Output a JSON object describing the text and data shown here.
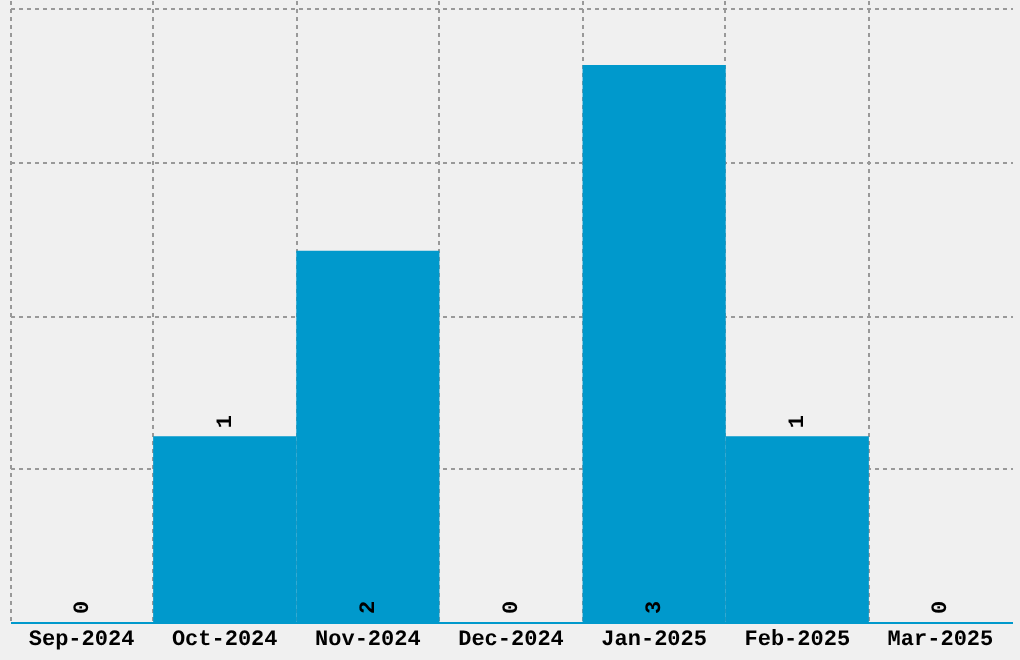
{
  "chart_data": {
    "type": "bar",
    "categories": [
      "Sep-2024",
      "Oct-2024",
      "Nov-2024",
      "Dec-2024",
      "Jan-2025",
      "Feb-2025",
      "Mar-2025"
    ],
    "values": [
      0,
      1,
      2,
      0,
      3,
      1,
      0
    ],
    "color": "#0099cc",
    "ylim": [
      0,
      3.35
    ],
    "yticks": [
      {
        "value": 0.83,
        "label": null
      },
      {
        "value": 1.65,
        "label": null
      },
      {
        "value": 2.48,
        "label": null
      },
      {
        "value": 3.31,
        "label": null
      }
    ],
    "grid": true,
    "data_labels": true,
    "tick_labels": "x"
  }
}
